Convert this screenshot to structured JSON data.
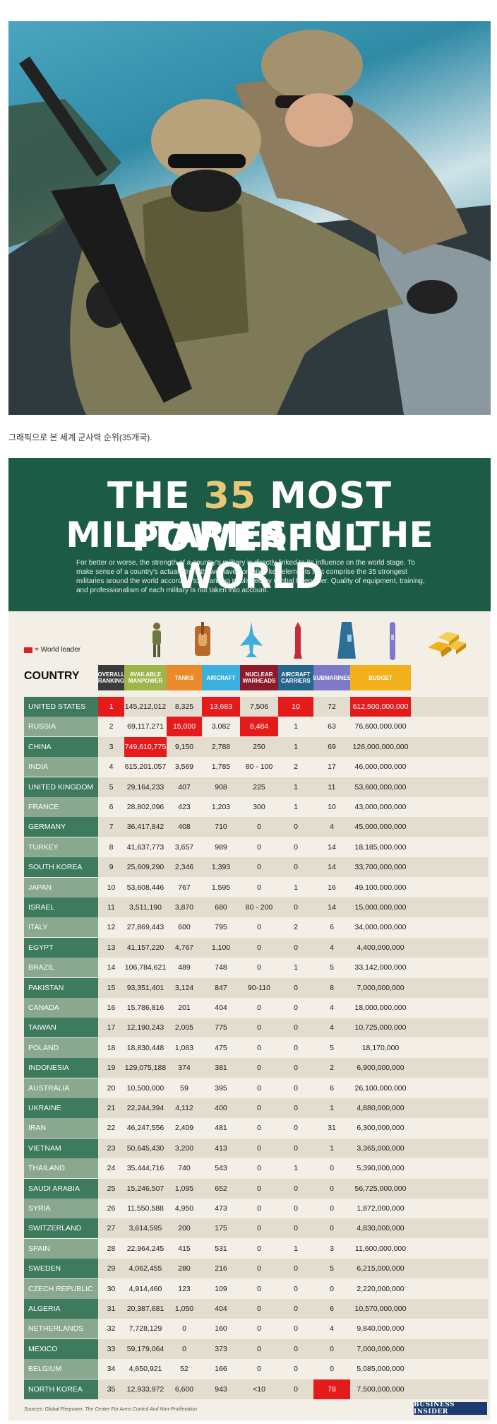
{
  "caption": "그래픽으로 본 세계 군사력 순위(35개국).",
  "infographic": {
    "title_line1_a": "THE ",
    "title_line1_num": "35",
    "title_line1_b": " MOST POWERFUL",
    "title_line2": "MILITARIES IN THE WORLD",
    "intro": "For better or worse, the strength of a country's military is directly linked to its influence on the world stage. To make sense of a country's actual strength, we have compiled key elements that comprise the 35 strongest militaries around the world according to a ranking published by Global Firepower. Quality of equipment, training, and professionalism of each military is not taken into account.",
    "legend_label": "= World leader",
    "country_header": "COUNTRY",
    "columns": [
      {
        "key": "rank",
        "label": "OVERALL RANKING",
        "color": "#3b3b3b"
      },
      {
        "key": "manpower",
        "label": "AVAILABLE MANPOWER",
        "color": "#9db54a"
      },
      {
        "key": "tanks",
        "label": "TANKS",
        "color": "#ea8a2a"
      },
      {
        "key": "aircraft",
        "label": "AIRCRAFT",
        "color": "#3bb0dd"
      },
      {
        "key": "nuclear",
        "label": "NUCLEAR WARHEADS",
        "color": "#8c1a2a"
      },
      {
        "key": "carriers",
        "label": "AIRCRAFT CARRIERS",
        "color": "#25668a"
      },
      {
        "key": "subs",
        "label": "SUBMARINES",
        "color": "#7c7ac9"
      },
      {
        "key": "budget",
        "label": "BUDGET",
        "color": "#f2b01b"
      }
    ],
    "rows": [
      {
        "country": "UNITED STATES",
        "rank": "1",
        "manpower": "145,212,012",
        "tanks": "8,325",
        "aircraft": "13,683",
        "nuclear": "7,506",
        "carriers": "10",
        "subs": "72",
        "budget": "612,500,000,000",
        "hi": [
          "rank",
          "aircraft",
          "carriers",
          "budget"
        ]
      },
      {
        "country": "RUSSIA",
        "rank": "2",
        "manpower": "69,117,271",
        "tanks": "15,000",
        "aircraft": "3,082",
        "nuclear": "8,484",
        "carriers": "1",
        "subs": "63",
        "budget": "76,600,000,000",
        "hi": [
          "tanks",
          "nuclear"
        ]
      },
      {
        "country": "CHINA",
        "rank": "3",
        "manpower": "749,610,775",
        "tanks": "9,150",
        "aircraft": "2,788",
        "nuclear": "250",
        "carriers": "1",
        "subs": "69",
        "budget": "126,000,000,000",
        "hi": [
          "manpower"
        ]
      },
      {
        "country": "INDIA",
        "rank": "4",
        "manpower": "615,201,057",
        "tanks": "3,569",
        "aircraft": "1,785",
        "nuclear": "80 - 100",
        "carriers": "2",
        "subs": "17",
        "budget": "46,000,000,000",
        "hi": []
      },
      {
        "country": "UNITED KINGDOM",
        "rank": "5",
        "manpower": "29,164,233",
        "tanks": "407",
        "aircraft": "908",
        "nuclear": "225",
        "carriers": "1",
        "subs": "11",
        "budget": "53,600,000,000",
        "hi": []
      },
      {
        "country": "FRANCE",
        "rank": "6",
        "manpower": "28,802,096",
        "tanks": "423",
        "aircraft": "1,203",
        "nuclear": "300",
        "carriers": "1",
        "subs": "10",
        "budget": "43,000,000,000",
        "hi": []
      },
      {
        "country": "GERMANY",
        "rank": "7",
        "manpower": "36,417,842",
        "tanks": "408",
        "aircraft": "710",
        "nuclear": "0",
        "carriers": "0",
        "subs": "4",
        "budget": "45,000,000,000",
        "hi": []
      },
      {
        "country": "TURKEY",
        "rank": "8",
        "manpower": "41,637,773",
        "tanks": "3,657",
        "aircraft": "989",
        "nuclear": "0",
        "carriers": "0",
        "subs": "14",
        "budget": "18,185,000,000",
        "hi": []
      },
      {
        "country": "SOUTH KOREA",
        "rank": "9",
        "manpower": "25,609,290",
        "tanks": "2,346",
        "aircraft": "1,393",
        "nuclear": "0",
        "carriers": "0",
        "subs": "14",
        "budget": "33,700,000,000",
        "hi": []
      },
      {
        "country": "JAPAN",
        "rank": "10",
        "manpower": "53,608,446",
        "tanks": "767",
        "aircraft": "1,595",
        "nuclear": "0",
        "carriers": "1",
        "subs": "16",
        "budget": "49,100,000,000",
        "hi": []
      },
      {
        "country": "ISRAEL",
        "rank": "11",
        "manpower": "3,511,190",
        "tanks": "3,870",
        "aircraft": "680",
        "nuclear": "80 - 200",
        "carriers": "0",
        "subs": "14",
        "budget": "15,000,000,000",
        "hi": []
      },
      {
        "country": "ITALY",
        "rank": "12",
        "manpower": "27,869,443",
        "tanks": "600",
        "aircraft": "795",
        "nuclear": "0",
        "carriers": "2",
        "subs": "6",
        "budget": "34,000,000,000",
        "hi": []
      },
      {
        "country": "EGYPT",
        "rank": "13",
        "manpower": "41,157,220",
        "tanks": "4,767",
        "aircraft": "1,100",
        "nuclear": "0",
        "carriers": "0",
        "subs": "4",
        "budget": "4,400,000,000",
        "hi": []
      },
      {
        "country": "BRAZIL",
        "rank": "14",
        "manpower": "106,784,621",
        "tanks": "489",
        "aircraft": "748",
        "nuclear": "0",
        "carriers": "1",
        "subs": "5",
        "budget": "33,142,000,000",
        "hi": []
      },
      {
        "country": "PAKISTAN",
        "rank": "15",
        "manpower": "93,351,401",
        "tanks": "3,124",
        "aircraft": "847",
        "nuclear": "90-110",
        "carriers": "0",
        "subs": "8",
        "budget": "7,000,000,000",
        "hi": []
      },
      {
        "country": "CANADA",
        "rank": "16",
        "manpower": "15,786,816",
        "tanks": "201",
        "aircraft": "404",
        "nuclear": "0",
        "carriers": "0",
        "subs": "4",
        "budget": "18,000,000,000",
        "hi": []
      },
      {
        "country": "TAIWAN",
        "rank": "17",
        "manpower": "12,190,243",
        "tanks": "2,005",
        "aircraft": "775",
        "nuclear": "0",
        "carriers": "0",
        "subs": "4",
        "budget": "10,725,000,000",
        "hi": []
      },
      {
        "country": "POLAND",
        "rank": "18",
        "manpower": "18,830,448",
        "tanks": "1,063",
        "aircraft": "475",
        "nuclear": "0",
        "carriers": "0",
        "subs": "5",
        "budget": "18,170,000",
        "hi": []
      },
      {
        "country": "INDONESIA",
        "rank": "19",
        "manpower": "129,075,188",
        "tanks": "374",
        "aircraft": "381",
        "nuclear": "0",
        "carriers": "0",
        "subs": "2",
        "budget": "6,900,000,000",
        "hi": []
      },
      {
        "country": "AUSTRALIA",
        "rank": "20",
        "manpower": "10,500,000",
        "tanks": "59",
        "aircraft": "395",
        "nuclear": "0",
        "carriers": "0",
        "subs": "6",
        "budget": "26,100,000,000",
        "hi": []
      },
      {
        "country": "UKRAINE",
        "rank": "21",
        "manpower": "22,244,394",
        "tanks": "4,112",
        "aircraft": "400",
        "nuclear": "0",
        "carriers": "0",
        "subs": "1",
        "budget": "4,880,000,000",
        "hi": []
      },
      {
        "country": "IRAN",
        "rank": "22",
        "manpower": "46,247,556",
        "tanks": "2,409",
        "aircraft": "481",
        "nuclear": "0",
        "carriers": "0",
        "subs": "31",
        "budget": "6,300,000,000",
        "hi": []
      },
      {
        "country": "VIETNAM",
        "rank": "23",
        "manpower": "50,645,430",
        "tanks": "3,200",
        "aircraft": "413",
        "nuclear": "0",
        "carriers": "0",
        "subs": "1",
        "budget": "3,365,000,000",
        "hi": []
      },
      {
        "country": "THAILAND",
        "rank": "24",
        "manpower": "35,444,716",
        "tanks": "740",
        "aircraft": "543",
        "nuclear": "0",
        "carriers": "1",
        "subs": "0",
        "budget": "5,390,000,000",
        "hi": []
      },
      {
        "country": "SAUDI ARABIA",
        "rank": "25",
        "manpower": "15,246,507",
        "tanks": "1,095",
        "aircraft": "652",
        "nuclear": "0",
        "carriers": "0",
        "subs": "0",
        "budget": "56,725,000,000",
        "hi": []
      },
      {
        "country": "SYRIA",
        "rank": "26",
        "manpower": "11,550,588",
        "tanks": "4,950",
        "aircraft": "473",
        "nuclear": "0",
        "carriers": "0",
        "subs": "0",
        "budget": "1,872,000,000",
        "hi": []
      },
      {
        "country": "SWITZERLAND",
        "rank": "27",
        "manpower": "3,614,595",
        "tanks": "200",
        "aircraft": "175",
        "nuclear": "0",
        "carriers": "0",
        "subs": "0",
        "budget": "4,830,000,000",
        "hi": []
      },
      {
        "country": "SPAIN",
        "rank": "28",
        "manpower": "22,964,245",
        "tanks": "415",
        "aircraft": "531",
        "nuclear": "0",
        "carriers": "1",
        "subs": "3",
        "budget": "11,600,000,000",
        "hi": []
      },
      {
        "country": "SWEDEN",
        "rank": "29",
        "manpower": "4,062,455",
        "tanks": "280",
        "aircraft": "216",
        "nuclear": "0",
        "carriers": "0",
        "subs": "5",
        "budget": "6,215,000,000",
        "hi": []
      },
      {
        "country": "CZECH REPUBLIC",
        "rank": "30",
        "manpower": "4,914,460",
        "tanks": "123",
        "aircraft": "109",
        "nuclear": "0",
        "carriers": "0",
        "subs": "0",
        "budget": "2,220,000,000",
        "hi": []
      },
      {
        "country": "ALGERIA",
        "rank": "31",
        "manpower": "20,387,681",
        "tanks": "1,050",
        "aircraft": "404",
        "nuclear": "0",
        "carriers": "0",
        "subs": "6",
        "budget": "10,570,000,000",
        "hi": []
      },
      {
        "country": "NETHERLANDS",
        "rank": "32",
        "manpower": "7,728,129",
        "tanks": "0",
        "aircraft": "160",
        "nuclear": "0",
        "carriers": "0",
        "subs": "4",
        "budget": "9,840,000,000",
        "hi": []
      },
      {
        "country": "MEXICO",
        "rank": "33",
        "manpower": "59,179,064",
        "tanks": "0",
        "aircraft": "373",
        "nuclear": "0",
        "carriers": "0",
        "subs": "0",
        "budget": "7,000,000,000",
        "hi": []
      },
      {
        "country": "BELGIUM",
        "rank": "34",
        "manpower": "4,650,921",
        "tanks": "52",
        "aircraft": "166",
        "nuclear": "0",
        "carriers": "0",
        "subs": "0",
        "budget": "5,085,000,000",
        "hi": []
      },
      {
        "country": "NORTH KOREA",
        "rank": "35",
        "manpower": "12,933,972",
        "tanks": "6,600",
        "aircraft": "943",
        "nuclear": "<10",
        "carriers": "0",
        "subs": "78",
        "budget": "7,500,000,000",
        "hi": [
          "subs"
        ]
      }
    ],
    "sources": "Sources: Global Firepower, The Center For Arms Control And Non-Proliferation",
    "brand": "BUSINESS INSIDER",
    "colors": {
      "banner": "#1c5b45",
      "highlight": "#e51b1b",
      "country_dark": "#3d7a5e",
      "country_light": "#8aa88f",
      "row_dark": "#e3ddcf",
      "row_light": "#f3efe6"
    },
    "icons": [
      "soldier-icon",
      "tank-icon",
      "jet-icon",
      "missile-icon",
      "aircraft-carrier-icon",
      "submarine-icon",
      "gold-bars-icon"
    ]
  }
}
